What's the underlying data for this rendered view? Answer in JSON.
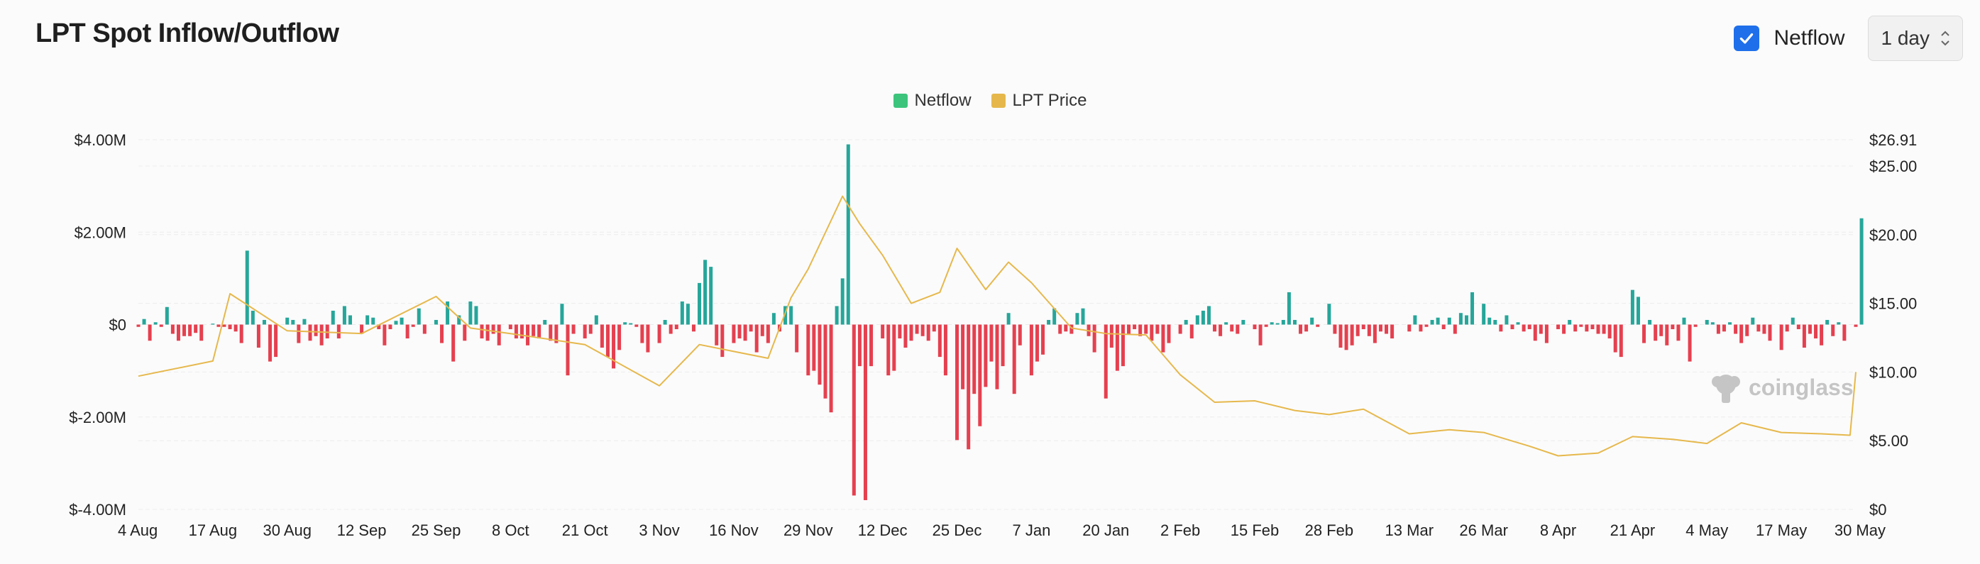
{
  "header": {
    "title": "LPT Spot Inflow/Outflow",
    "netflow_toggle": {
      "label": "Netflow",
      "checked": true
    },
    "interval_select": {
      "value": "1 day"
    }
  },
  "watermark": {
    "text": "coinglass"
  },
  "colors": {
    "inflow": "#26a69a",
    "outflow": "#e5404f",
    "price": "#e6b84c",
    "netflow_legend": "#3cc47c",
    "grid": "#ececec"
  },
  "chart_data": {
    "type": "bar",
    "legend": [
      {
        "name": "Netflow",
        "color": "#3cc47c"
      },
      {
        "name": "LPT Price",
        "color": "#e6b84c"
      }
    ],
    "x_ticks": [
      "4 Aug",
      "17 Aug",
      "30 Aug",
      "12 Sep",
      "25 Sep",
      "8 Oct",
      "21 Oct",
      "3 Nov",
      "16 Nov",
      "29 Nov",
      "12 Dec",
      "25 Dec",
      "7 Jan",
      "20 Jan",
      "2 Feb",
      "15 Feb",
      "28 Feb",
      "13 Mar",
      "26 Mar",
      "8 Apr",
      "21 Apr",
      "4 May",
      "17 May",
      "30 May"
    ],
    "y_left": {
      "ticks": [
        "$4.00M",
        "$2.00M",
        "$0",
        "$-2.00M",
        "$-4.00M"
      ],
      "values": [
        4,
        2,
        0,
        -2,
        -4
      ],
      "range": [
        -4,
        4
      ],
      "unit": "M USD"
    },
    "y_right": {
      "ticks": [
        "$26.91",
        "$25.00",
        "$20.00",
        "$15.00",
        "$10.00",
        "$5.00",
        "$0"
      ],
      "values": [
        26.91,
        25,
        20,
        15,
        10,
        5,
        0
      ],
      "range": [
        0,
        26.91
      ]
    },
    "netflow_series": [
      {
        "date": "4 Aug",
        "values": [
          -0.05,
          0.12,
          -0.35,
          0.05,
          -0.05,
          0.38,
          -0.2,
          -0.35,
          -0.25,
          -0.25,
          -0.18,
          -0.35
        ]
      },
      {
        "date": "17 Aug",
        "values": [
          0.02,
          -0.05,
          -0.05,
          -0.1,
          -0.15,
          -0.4,
          1.6,
          0.3,
          -0.5,
          0.1,
          -0.8,
          -0.7
        ]
      },
      {
        "date": "30 Aug",
        "values": [
          0.15,
          0.1,
          -0.4,
          0.12,
          -0.35,
          -0.25,
          -0.45,
          -0.3,
          0.3,
          -0.3,
          0.4,
          0.2
        ]
      },
      {
        "date": "12 Sep",
        "values": [
          -0.2,
          0.2,
          0.15,
          -0.1,
          -0.45,
          -0.1,
          0.08,
          0.15,
          -0.3,
          -0.05,
          0.35,
          -0.2
        ]
      },
      {
        "date": "25 Sep",
        "values": [
          0.1,
          -0.4,
          0.5,
          -0.8,
          0.2,
          -0.35,
          0.5,
          0.4,
          -0.3,
          -0.35,
          -0.2,
          -0.45
        ]
      },
      {
        "date": "8 Oct",
        "values": [
          -0.1,
          -0.3,
          -0.3,
          -0.45,
          -0.25,
          -0.3,
          0.1,
          -0.35,
          -0.4,
          0.45,
          -1.1,
          -0.2
        ]
      },
      {
        "date": "21 Oct",
        "values": [
          -0.3,
          -0.2,
          0.2,
          -0.5,
          -0.7,
          -0.95,
          -0.55,
          0.05,
          0.03,
          -0.05,
          -0.4,
          -0.6
        ]
      },
      {
        "date": "3 Nov",
        "values": [
          -0.4,
          0.1,
          -0.2,
          -0.1,
          0.5,
          0.45,
          -0.15,
          0.9,
          1.4,
          1.25,
          -0.45,
          -0.7
        ]
      },
      {
        "date": "16 Nov",
        "values": [
          -0.4,
          -0.3,
          -0.35,
          -0.15,
          -0.6,
          -0.25,
          -0.4,
          0.25,
          -0.15,
          0.4,
          0.4,
          -0.6
        ]
      },
      {
        "date": "29 Nov",
        "values": [
          -1.1,
          -1.0,
          -1.3,
          -1.6,
          -1.9,
          0.4,
          1.0,
          3.9,
          -3.7,
          -0.9,
          -3.8,
          -0.9
        ]
      },
      {
        "date": "12 Dec",
        "values": [
          -0.3,
          -1.1,
          -1.0,
          -0.3,
          -0.5,
          -0.35,
          -0.2,
          -0.25,
          -0.35,
          -0.15,
          -0.7,
          -1.1
        ]
      },
      {
        "date": "25 Dec",
        "values": [
          -2.5,
          -1.4,
          -2.7,
          -1.5,
          -2.2,
          -1.35,
          -0.8,
          -1.4,
          -0.9,
          0.25,
          -1.5,
          -0.45
        ]
      },
      {
        "date": "7 Jan",
        "values": [
          -1.1,
          -0.8,
          -0.65,
          0.1,
          0.35,
          -0.2,
          -0.15,
          -0.2,
          0.25,
          0.35,
          -0.25,
          -0.6
        ]
      },
      {
        "date": "20 Jan",
        "values": [
          -1.6,
          -0.5,
          -1.0,
          -0.9,
          -0.2,
          -0.1,
          -0.25,
          -0.2,
          -0.35,
          -0.2,
          -0.6,
          -0.4
        ]
      },
      {
        "date": "2 Feb",
        "values": [
          -0.2,
          0.1,
          -0.3,
          0.2,
          0.3,
          0.4,
          -0.15,
          -0.25,
          0.05,
          -0.15,
          -0.2,
          0.1
        ]
      },
      {
        "date": "15 Feb",
        "values": [
          -0.1,
          -0.45,
          -0.05,
          0.05,
          0.03,
          0.1,
          0.7,
          0.1,
          -0.2,
          -0.15,
          0.15,
          -0.05
        ]
      },
      {
        "date": "28 Feb",
        "values": [
          0.45,
          -0.2,
          -0.5,
          -0.55,
          -0.45,
          -0.25,
          -0.1,
          -0.25,
          -0.4,
          -0.15,
          -0.2,
          -0.3
        ]
      },
      {
        "date": "13 Mar",
        "values": [
          -0.15,
          0.2,
          -0.15,
          -0.05,
          0.1,
          0.15,
          -0.1,
          0.15,
          -0.2,
          0.25,
          0.2,
          0.7
        ]
      },
      {
        "date": "26 Mar",
        "values": [
          0.45,
          0.15,
          0.1,
          -0.15,
          0.2,
          -0.1,
          0.05,
          -0.15,
          -0.1,
          -0.35,
          -0.2,
          -0.4
        ]
      },
      {
        "date": "8 Apr",
        "values": [
          -0.1,
          -0.2,
          0.1,
          -0.15,
          -0.05,
          -0.15,
          -0.1,
          -0.2,
          -0.2,
          -0.3,
          -0.6,
          -0.7
        ]
      },
      {
        "date": "21 Apr",
        "values": [
          0.75,
          0.6,
          -0.4,
          0.1,
          -0.35,
          -0.25,
          -0.45,
          -0.1,
          -0.35,
          0.15,
          -0.8,
          -0.05
        ]
      },
      {
        "date": "4 May",
        "values": [
          0.1,
          0.05,
          -0.2,
          -0.15,
          0.05,
          -0.2,
          -0.4,
          -0.25,
          0.15,
          -0.15,
          -0.2,
          -0.35
        ]
      },
      {
        "date": "17 May",
        "values": [
          -0.55,
          -0.15,
          0.15,
          -0.1,
          -0.5,
          -0.2,
          -0.3,
          -0.45,
          0.1,
          -0.25,
          0.05,
          -0.35
        ]
      },
      {
        "date": "30 May",
        "values": [
          -0.05,
          2.3
        ]
      }
    ],
    "price_series": [
      {
        "date": "4 Aug",
        "price": 9.7
      },
      {
        "date": "17 Aug",
        "price": 10.8
      },
      {
        "date": "20 Aug",
        "price": 15.7
      },
      {
        "date": "30 Aug",
        "price": 13.0
      },
      {
        "date": "12 Sep",
        "price": 12.8
      },
      {
        "date": "25 Sep",
        "price": 15.5
      },
      {
        "date": "1 Oct",
        "price": 13.2
      },
      {
        "date": "8 Oct",
        "price": 12.8
      },
      {
        "date": "21 Oct",
        "price": 12.0
      },
      {
        "date": "3 Nov",
        "price": 9.0
      },
      {
        "date": "10 Nov",
        "price": 12.0
      },
      {
        "date": "16 Nov",
        "price": 11.5
      },
      {
        "date": "22 Nov",
        "price": 11.0
      },
      {
        "date": "26 Nov",
        "price": 15.4
      },
      {
        "date": "29 Nov",
        "price": 17.5
      },
      {
        "date": "5 Dec",
        "price": 22.8
      },
      {
        "date": "8 Dec",
        "price": 20.8
      },
      {
        "date": "12 Dec",
        "price": 18.5
      },
      {
        "date": "17 Dec",
        "price": 15.0
      },
      {
        "date": "22 Dec",
        "price": 15.8
      },
      {
        "date": "25 Dec",
        "price": 19.0
      },
      {
        "date": "30 Dec",
        "price": 16.0
      },
      {
        "date": "3 Jan",
        "price": 18.0
      },
      {
        "date": "7 Jan",
        "price": 16.5
      },
      {
        "date": "14 Jan",
        "price": 13.2
      },
      {
        "date": "20 Jan",
        "price": 12.8
      },
      {
        "date": "27 Jan",
        "price": 12.7
      },
      {
        "date": "2 Feb",
        "price": 9.8
      },
      {
        "date": "8 Feb",
        "price": 7.8
      },
      {
        "date": "15 Feb",
        "price": 7.9
      },
      {
        "date": "22 Feb",
        "price": 7.2
      },
      {
        "date": "28 Feb",
        "price": 6.9
      },
      {
        "date": "5 Mar",
        "price": 7.3
      },
      {
        "date": "13 Mar",
        "price": 5.5
      },
      {
        "date": "20 Mar",
        "price": 5.8
      },
      {
        "date": "26 Mar",
        "price": 5.6
      },
      {
        "date": "3 Apr",
        "price": 4.6
      },
      {
        "date": "8 Apr",
        "price": 3.9
      },
      {
        "date": "15 Apr",
        "price": 4.1
      },
      {
        "date": "21 Apr",
        "price": 5.3
      },
      {
        "date": "28 Apr",
        "price": 5.1
      },
      {
        "date": "4 May",
        "price": 4.8
      },
      {
        "date": "10 May",
        "price": 6.3
      },
      {
        "date": "17 May",
        "price": 5.6
      },
      {
        "date": "24 May",
        "price": 5.5
      },
      {
        "date": "29 May",
        "price": 5.4
      },
      {
        "date": "30 May",
        "price": 10.0
      }
    ],
    "grid": true,
    "legend_position": "top-center"
  }
}
